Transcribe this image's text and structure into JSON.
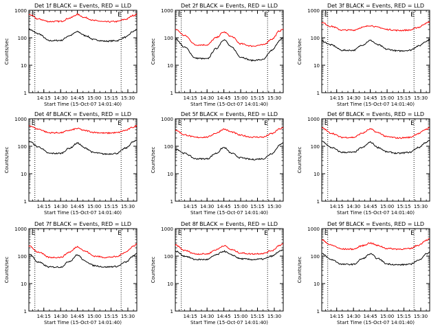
{
  "colors": {
    "background": "#ffffff",
    "axis": "#000000",
    "events": "#000000",
    "lld": "#ff0000"
  },
  "chart_data": [
    {
      "type": "line",
      "title": "Det 1f BLACK = Events, RED = LLD",
      "ylabel": "Counts/sec",
      "xlabel": "Start Time (15-Oct-07 14:01:40)",
      "xlim": [
        "14:01:40",
        "15:38:00"
      ],
      "ylim": [
        1,
        1000
      ],
      "yscale": "log",
      "xticks": [
        "14:15",
        "14:30",
        "14:45",
        "15:00",
        "15:15",
        "15:30"
      ],
      "yticks": [
        "1",
        "10",
        "100",
        "1000"
      ],
      "markers": [
        {
          "label": "E",
          "x": "14:07"
        },
        {
          "label": "E",
          "x": "15:24"
        }
      ],
      "series": [
        {
          "name": "Events",
          "color": "#000000",
          "x": [
            "14:02",
            "14:10",
            "14:20",
            "14:30",
            "14:38",
            "14:45",
            "14:52",
            "15:00",
            "15:10",
            "15:20",
            "15:28",
            "15:35",
            "15:38"
          ],
          "values": [
            200,
            140,
            78,
            80,
            120,
            165,
            120,
            85,
            75,
            78,
            105,
            170,
            195
          ]
        },
        {
          "name": "LLD",
          "color": "#ff0000",
          "x": [
            "14:02",
            "14:10",
            "14:20",
            "14:30",
            "14:38",
            "14:45",
            "14:52",
            "15:00",
            "15:10",
            "15:20",
            "15:28",
            "15:35",
            "15:38"
          ],
          "values": [
            700,
            480,
            390,
            395,
            520,
            700,
            540,
            420,
            380,
            390,
            470,
            650,
            720
          ]
        }
      ]
    },
    {
      "type": "line",
      "title": "Det 2f BLACK = Events, RED = LLD",
      "ylabel": "Counts/sec",
      "xlabel": "Start Time (15-Oct-07 14:01:40)",
      "xlim": [
        "14:01:40",
        "15:38:00"
      ],
      "ylim": [
        1,
        1000
      ],
      "yscale": "log",
      "xticks": [
        "14:15",
        "14:30",
        "14:45",
        "15:00",
        "15:15",
        "15:30"
      ],
      "yticks": [
        "1",
        "10",
        "100",
        "1000"
      ],
      "markers": [
        {
          "label": "E",
          "x": "14:07"
        },
        {
          "label": "E",
          "x": "15:24"
        }
      ],
      "series": [
        {
          "name": "Events",
          "color": "#000000",
          "x": [
            "14:02",
            "14:10",
            "14:20",
            "14:30",
            "14:38",
            "14:45",
            "14:52",
            "15:00",
            "15:10",
            "15:20",
            "15:28",
            "15:35",
            "15:38"
          ],
          "values": [
            90,
            45,
            18,
            17,
            40,
            85,
            45,
            20,
            15,
            16,
            35,
            80,
            100
          ]
        },
        {
          "name": "LLD",
          "color": "#ff0000",
          "x": [
            "14:02",
            "14:10",
            "14:20",
            "14:30",
            "14:38",
            "14:45",
            "14:52",
            "15:00",
            "15:10",
            "15:20",
            "15:28",
            "15:35",
            "15:38"
          ],
          "values": [
            200,
            120,
            55,
            55,
            100,
            160,
            110,
            60,
            50,
            55,
            90,
            180,
            210
          ]
        }
      ]
    },
    {
      "type": "line",
      "title": "Det 3f BLACK = Events, RED = LLD",
      "ylabel": "Counts/sec",
      "xlabel": "Start Time (15-Oct-07 14:01:40)",
      "xlim": [
        "14:01:40",
        "15:38:00"
      ],
      "ylim": [
        1,
        1000
      ],
      "yscale": "log",
      "xticks": [
        "14:15",
        "14:30",
        "14:45",
        "15:00",
        "15:15",
        "15:30"
      ],
      "yticks": [
        "1",
        "10",
        "100",
        "1000"
      ],
      "markers": [
        {
          "label": "E",
          "x": "14:07"
        },
        {
          "label": "E",
          "x": "15:24"
        }
      ],
      "series": [
        {
          "name": "Events",
          "color": "#000000",
          "x": [
            "14:02",
            "14:10",
            "14:20",
            "14:30",
            "14:38",
            "14:45",
            "14:52",
            "15:00",
            "15:10",
            "15:20",
            "15:28",
            "15:35",
            "15:38"
          ],
          "values": [
            75,
            55,
            35,
            35,
            55,
            80,
            55,
            38,
            33,
            35,
            50,
            75,
            85
          ]
        },
        {
          "name": "LLD",
          "color": "#ff0000",
          "x": [
            "14:02",
            "14:10",
            "14:20",
            "14:30",
            "14:38",
            "14:45",
            "14:52",
            "15:00",
            "15:10",
            "15:20",
            "15:28",
            "15:35",
            "15:38"
          ],
          "values": [
            350,
            260,
            190,
            190,
            240,
            280,
            240,
            200,
            185,
            190,
            240,
            340,
            380
          ]
        }
      ]
    },
    {
      "type": "line",
      "title": "Det 4f BLACK = Events, RED = LLD",
      "ylabel": "Counts/sec",
      "xlabel": "Start Time (15-Oct-07 14:01:40)",
      "xlim": [
        "14:01:40",
        "15:38:00"
      ],
      "ylim": [
        1,
        1000
      ],
      "yscale": "log",
      "xticks": [
        "14:15",
        "14:30",
        "14:45",
        "15:00",
        "15:15",
        "15:30"
      ],
      "yticks": [
        "1",
        "10",
        "100",
        "1000"
      ],
      "markers": [
        {
          "label": "E",
          "x": "14:07"
        },
        {
          "label": "E",
          "x": "15:24"
        }
      ],
      "series": [
        {
          "name": "Events",
          "color": "#000000",
          "x": [
            "14:02",
            "14:10",
            "14:20",
            "14:30",
            "14:38",
            "14:45",
            "14:52",
            "15:00",
            "15:10",
            "15:20",
            "15:28",
            "15:35",
            "15:38"
          ],
          "values": [
            150,
            95,
            55,
            55,
            85,
            130,
            85,
            58,
            52,
            55,
            85,
            145,
            165
          ]
        },
        {
          "name": "LLD",
          "color": "#ff0000",
          "x": [
            "14:02",
            "14:10",
            "14:20",
            "14:30",
            "14:38",
            "14:45",
            "14:52",
            "15:00",
            "15:10",
            "15:20",
            "15:28",
            "15:35",
            "15:38"
          ],
          "values": [
            560,
            420,
            310,
            310,
            380,
            440,
            370,
            320,
            300,
            310,
            380,
            500,
            560
          ]
        }
      ]
    },
    {
      "type": "line",
      "title": "Det 5f BLACK = Events, RED = LLD",
      "ylabel": "Counts/sec",
      "xlabel": "Start Time (15-Oct-07 14:01:40)",
      "xlim": [
        "14:01:40",
        "15:38:00"
      ],
      "ylim": [
        1,
        1000
      ],
      "yscale": "log",
      "xticks": [
        "14:15",
        "14:30",
        "14:45",
        "15:00",
        "15:15",
        "15:30"
      ],
      "yticks": [
        "1",
        "10",
        "100",
        "1000"
      ],
      "markers": [
        {
          "label": "E",
          "x": "14:07"
        },
        {
          "label": "E",
          "x": "15:24"
        }
      ],
      "series": [
        {
          "name": "Events",
          "color": "#000000",
          "x": [
            "14:02",
            "14:10",
            "14:20",
            "14:30",
            "14:38",
            "14:45",
            "14:52",
            "15:00",
            "15:10",
            "15:20",
            "15:28",
            "15:35",
            "15:38"
          ],
          "values": [
            80,
            55,
            35,
            35,
            55,
            90,
            55,
            38,
            33,
            35,
            55,
            110,
            140
          ]
        },
        {
          "name": "LLD",
          "color": "#ff0000",
          "x": [
            "14:02",
            "14:10",
            "14:20",
            "14:30",
            "14:38",
            "14:45",
            "14:52",
            "15:00",
            "15:10",
            "15:20",
            "15:28",
            "15:35",
            "15:38"
          ],
          "values": [
            380,
            260,
            210,
            215,
            300,
            420,
            330,
            250,
            215,
            215,
            290,
            430,
            470
          ]
        }
      ]
    },
    {
      "type": "line",
      "title": "Det 6f BLACK = Events, RED = LLD",
      "ylabel": "Counts/sec",
      "xlabel": "Start Time (15-Oct-07 14:01:40)",
      "xlim": [
        "14:01:40",
        "15:38:00"
      ],
      "ylim": [
        1,
        1000
      ],
      "yscale": "log",
      "xticks": [
        "14:15",
        "14:30",
        "14:45",
        "15:00",
        "15:15",
        "15:30"
      ],
      "yticks": [
        "1",
        "10",
        "100",
        "1000"
      ],
      "markers": [
        {
          "label": "E",
          "x": "14:07"
        },
        {
          "label": "E",
          "x": "15:24"
        }
      ],
      "series": [
        {
          "name": "Events",
          "color": "#000000",
          "x": [
            "14:02",
            "14:10",
            "14:20",
            "14:30",
            "14:38",
            "14:45",
            "14:52",
            "15:00",
            "15:10",
            "15:20",
            "15:28",
            "15:35",
            "15:38"
          ],
          "values": [
            150,
            90,
            60,
            60,
            90,
            140,
            90,
            62,
            55,
            60,
            90,
            140,
            160
          ]
        },
        {
          "name": "LLD",
          "color": "#ff0000",
          "x": [
            "14:02",
            "14:10",
            "14:20",
            "14:30",
            "14:38",
            "14:45",
            "14:52",
            "15:00",
            "15:10",
            "15:20",
            "15:28",
            "15:35",
            "15:38"
          ],
          "values": [
            460,
            300,
            210,
            210,
            300,
            420,
            310,
            220,
            200,
            210,
            290,
            420,
            470
          ]
        }
      ]
    },
    {
      "type": "line",
      "title": "Det 7f BLACK = Events, RED = LLD",
      "ylabel": "Counts/sec",
      "xlabel": "Start Time (15-Oct-07 14:01:40)",
      "xlim": [
        "14:01:40",
        "15:38:00"
      ],
      "ylim": [
        1,
        1000
      ],
      "yscale": "log",
      "xticks": [
        "14:15",
        "14:30",
        "14:45",
        "15:00",
        "15:15",
        "15:30"
      ],
      "yticks": [
        "1",
        "10",
        "100",
        "1000"
      ],
      "markers": [
        {
          "label": "E",
          "x": "14:07"
        },
        {
          "label": "E",
          "x": "15:24"
        }
      ],
      "series": [
        {
          "name": "Events",
          "color": "#000000",
          "x": [
            "14:02",
            "14:10",
            "14:20",
            "14:30",
            "14:38",
            "14:45",
            "14:52",
            "15:00",
            "15:10",
            "15:20",
            "15:28",
            "15:35",
            "15:38"
          ],
          "values": [
            120,
            60,
            40,
            40,
            65,
            110,
            65,
            45,
            40,
            42,
            60,
            100,
            130
          ]
        },
        {
          "name": "LLD",
          "color": "#ff0000",
          "x": [
            "14:02",
            "14:10",
            "14:20",
            "14:30",
            "14:38",
            "14:45",
            "14:52",
            "15:00",
            "15:10",
            "15:20",
            "15:28",
            "15:35",
            "15:38"
          ],
          "values": [
            230,
            140,
            90,
            90,
            140,
            220,
            150,
            100,
            90,
            95,
            140,
            230,
            280
          ]
        }
      ]
    },
    {
      "type": "line",
      "title": "Det 8f BLACK = Events, RED = LLD",
      "ylabel": "Counts/sec",
      "xlabel": "Start Time (15-Oct-07 14:01:40)",
      "xlim": [
        "14:01:40",
        "15:38:00"
      ],
      "ylim": [
        1,
        1000
      ],
      "yscale": "log",
      "xticks": [
        "14:15",
        "14:30",
        "14:45",
        "15:00",
        "15:15",
        "15:30"
      ],
      "yticks": [
        "1",
        "10",
        "100",
        "1000"
      ],
      "markers": [
        {
          "label": "E",
          "x": "14:07"
        },
        {
          "label": "E",
          "x": "15:24"
        }
      ],
      "series": [
        {
          "name": "Events",
          "color": "#000000",
          "x": [
            "14:02",
            "14:10",
            "14:20",
            "14:30",
            "14:38",
            "14:45",
            "14:52",
            "15:00",
            "15:10",
            "15:20",
            "15:28",
            "15:35",
            "15:38"
          ],
          "values": [
            150,
            100,
            75,
            75,
            110,
            150,
            110,
            80,
            75,
            78,
            100,
            150,
            165
          ]
        },
        {
          "name": "LLD",
          "color": "#ff0000",
          "x": [
            "14:02",
            "14:10",
            "14:20",
            "14:30",
            "14:38",
            "14:45",
            "14:52",
            "15:00",
            "15:10",
            "15:20",
            "15:28",
            "15:35",
            "15:38"
          ],
          "values": [
            250,
            160,
            120,
            120,
            170,
            240,
            170,
            130,
            120,
            125,
            160,
            250,
            280
          ]
        }
      ]
    },
    {
      "type": "line",
      "title": "Det 9f BLACK = Events, RED = LLD",
      "ylabel": "Counts/sec",
      "xlabel": "Start Time (15-Oct-07 14:01:40)",
      "xlim": [
        "14:01:40",
        "15:38:00"
      ],
      "ylim": [
        1,
        1000
      ],
      "yscale": "log",
      "xticks": [
        "14:15",
        "14:30",
        "14:45",
        "15:00",
        "15:15",
        "15:30"
      ],
      "yticks": [
        "1",
        "10",
        "100",
        "1000"
      ],
      "markers": [
        {
          "label": "E",
          "x": "14:07"
        },
        {
          "label": "E",
          "x": "15:24"
        }
      ],
      "series": [
        {
          "name": "Events",
          "color": "#000000",
          "x": [
            "14:02",
            "14:10",
            "14:20",
            "14:30",
            "14:38",
            "14:45",
            "14:52",
            "15:00",
            "15:10",
            "15:20",
            "15:28",
            "15:35",
            "15:38"
          ],
          "values": [
            120,
            75,
            50,
            50,
            80,
            120,
            80,
            52,
            48,
            50,
            70,
            120,
            140
          ]
        },
        {
          "name": "LLD",
          "color": "#ff0000",
          "x": [
            "14:02",
            "14:10",
            "14:20",
            "14:30",
            "14:38",
            "14:45",
            "14:52",
            "15:00",
            "15:10",
            "15:20",
            "15:28",
            "15:35",
            "15:38"
          ],
          "values": [
            380,
            250,
            180,
            180,
            240,
            300,
            240,
            190,
            180,
            185,
            250,
            380,
            420
          ]
        }
      ]
    }
  ]
}
